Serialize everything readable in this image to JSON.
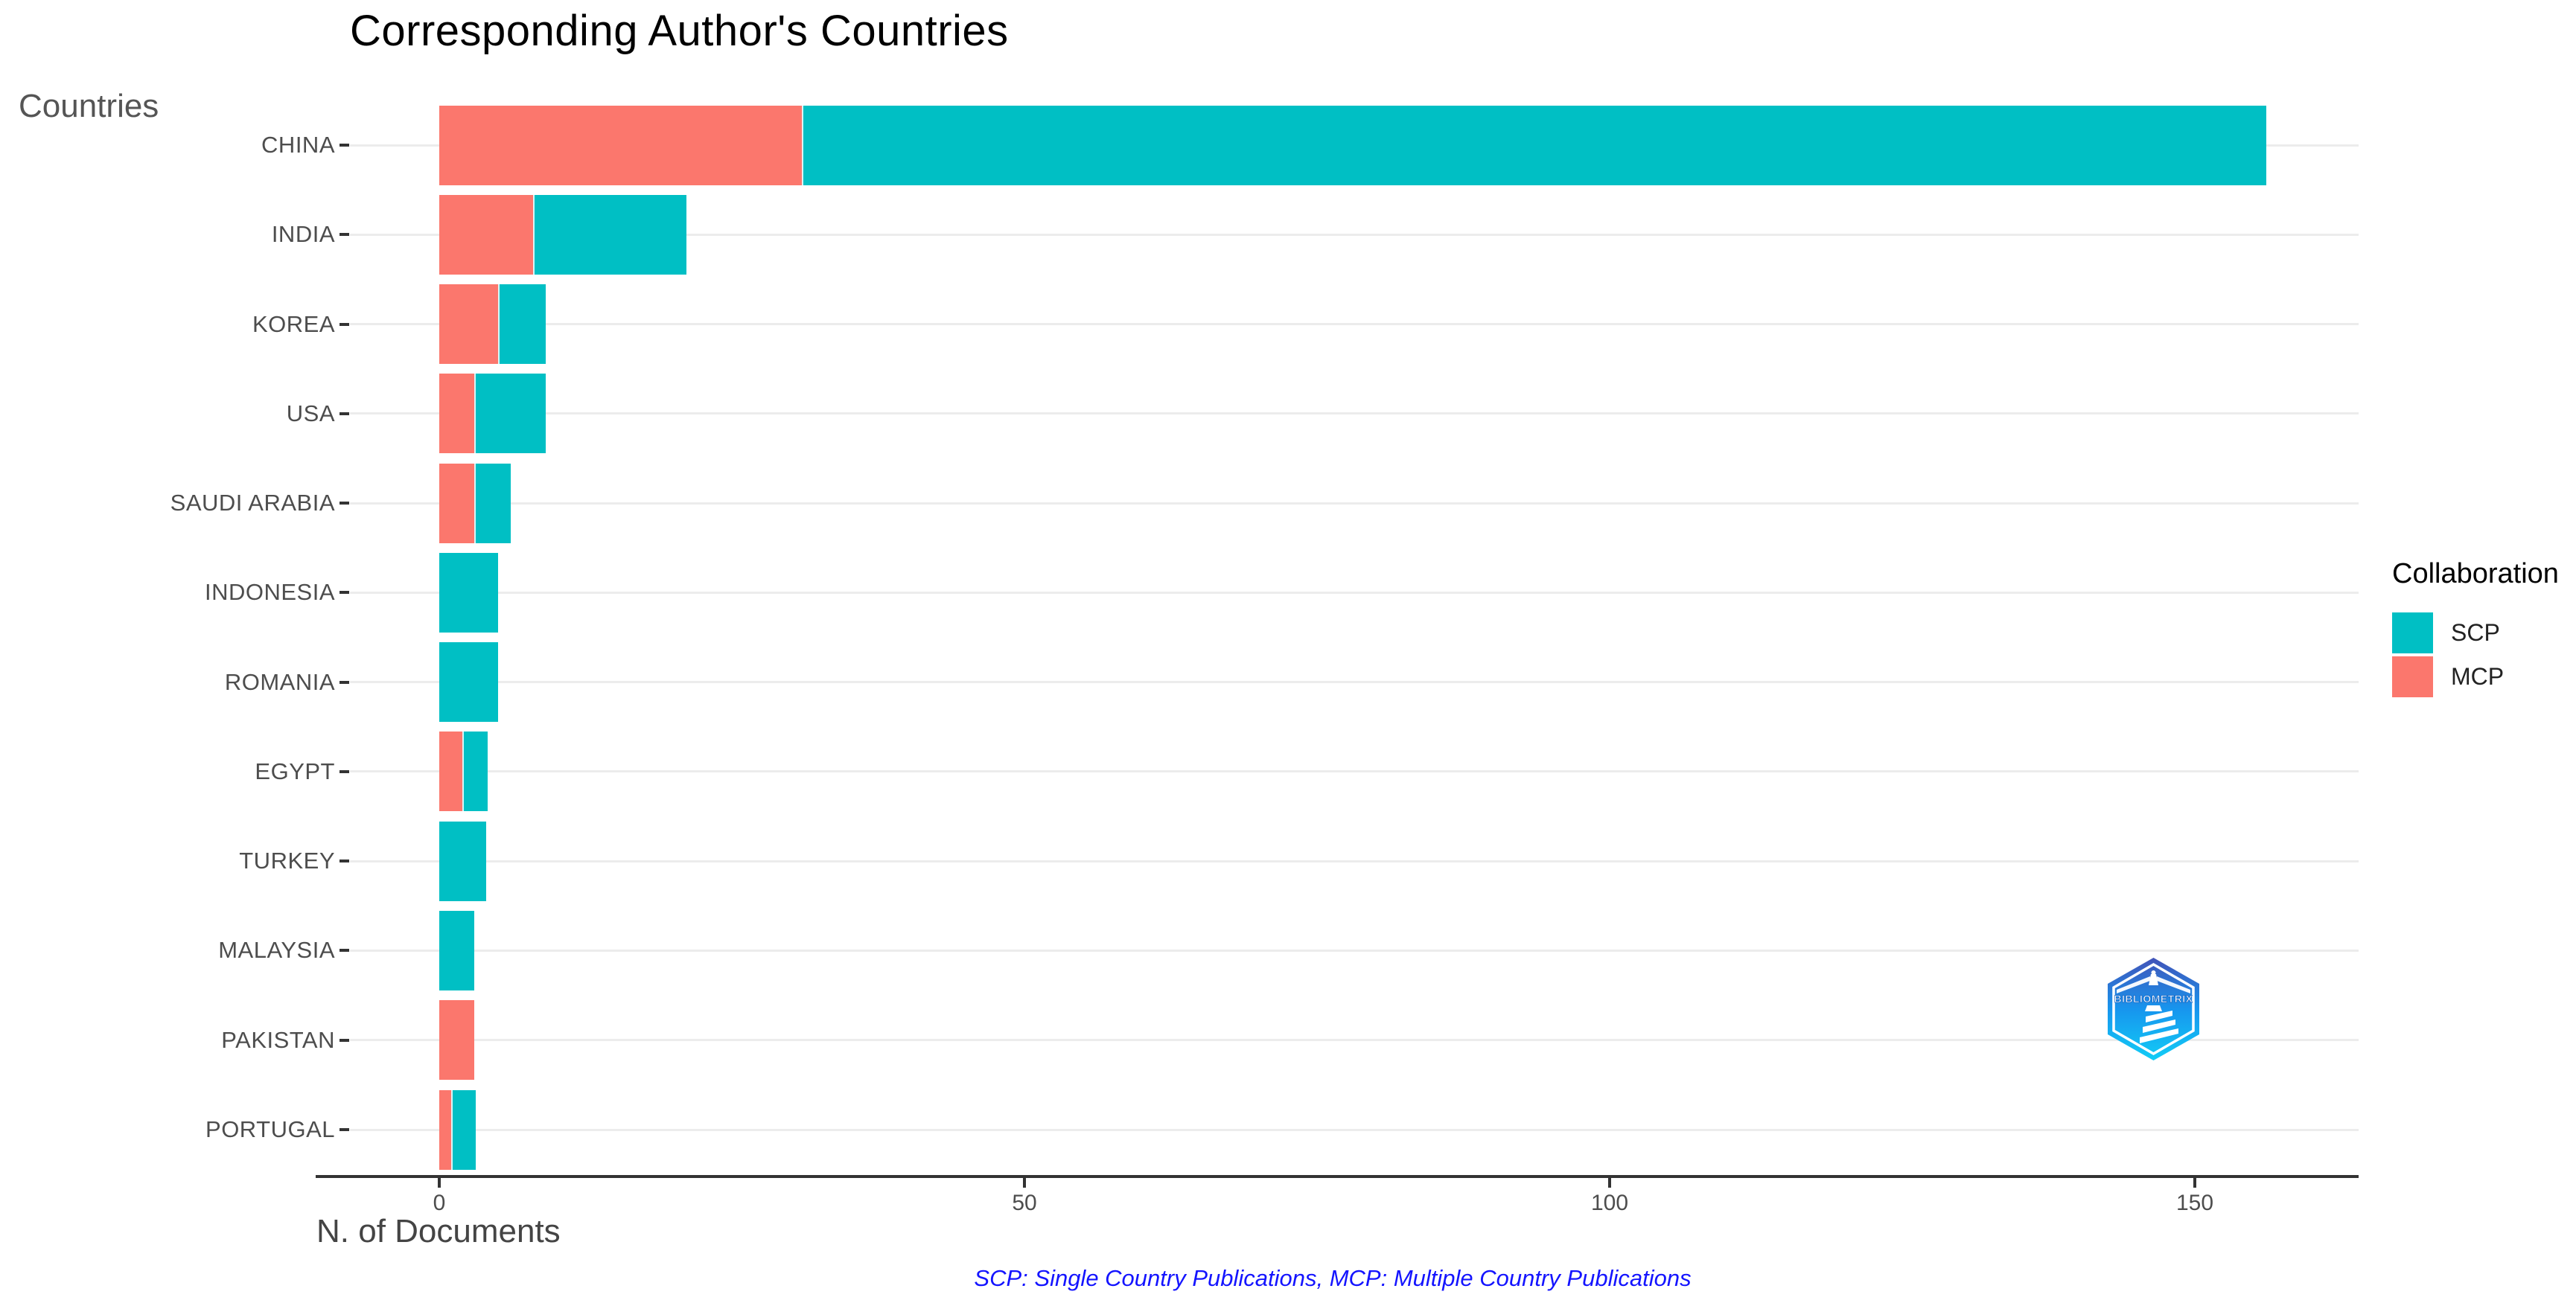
{
  "title": "Corresponding Author's Countries",
  "y_axis_title": "Countries",
  "x_axis_title": "N. of Documents",
  "caption": "SCP: Single Country Publications, MCP: Multiple Country Publications",
  "legend": {
    "title": "Collaboration",
    "items": [
      {
        "label": "SCP",
        "color": "#00bfc4"
      },
      {
        "label": "MCP",
        "color": "#fb776d"
      }
    ]
  },
  "logo": {
    "text": "BIBLIOMETRIX"
  },
  "colors": {
    "scp": "#00bfc4",
    "mcp": "#fb776d",
    "gridline": "#ececec",
    "axis": "#333333",
    "tick_label": "#4d4d4d",
    "caption_blue": "#1414ff"
  },
  "chart_data": {
    "type": "bar",
    "orientation": "horizontal",
    "stacked": true,
    "title": "Corresponding Author's Countries",
    "xlabel": "N. of Documents",
    "ylabel": "Countries",
    "categories": [
      "CHINA",
      "INDIA",
      "KOREA",
      "USA",
      "SAUDI ARABIA",
      "INDONESIA",
      "ROMANIA",
      "EGYPT",
      "TURKEY",
      "MALAYSIA",
      "PAKISTAN",
      "PORTUGAL"
    ],
    "series": [
      {
        "name": "MCP",
        "color": "#fb776d",
        "values": [
          31,
          8,
          5,
          3,
          3,
          0,
          0,
          2,
          0,
          0,
          3,
          1
        ]
      },
      {
        "name": "SCP",
        "color": "#00bfc4",
        "values": [
          125,
          13,
          4,
          6,
          3,
          5,
          5,
          2,
          4,
          3,
          0,
          2
        ]
      }
    ],
    "totals": [
      156,
      21,
      9,
      9,
      6,
      5,
      5,
      4,
      4,
      3,
      3,
      3
    ],
    "x_ticks": [
      0,
      50,
      100,
      150
    ],
    "xlim": [
      0,
      164
    ],
    "grid": "horizontal",
    "legend_position": "right",
    "stack_order": "MCP first (left), SCP second"
  }
}
